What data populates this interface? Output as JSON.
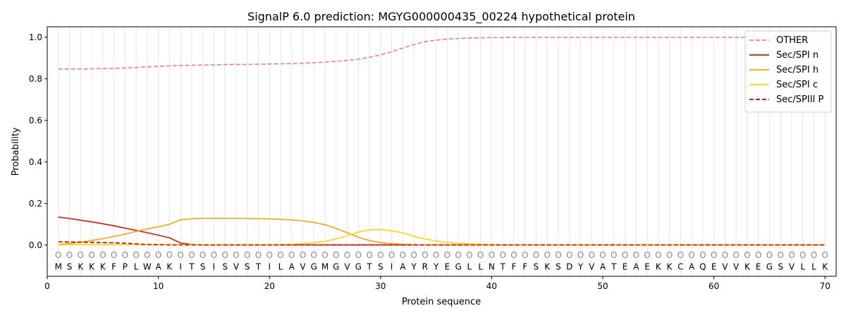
{
  "chart_data": {
    "type": "line",
    "title": "SignalP 6.0 prediction: MGYG000000435_00224 hypothetical protein",
    "xlabel": "Protein sequence",
    "ylabel": "Probability",
    "xlim": [
      0,
      71
    ],
    "ylim": [
      -0.15,
      1.05
    ],
    "x_ticks": [
      0,
      10,
      20,
      30,
      40,
      50,
      60,
      70
    ],
    "y_ticks": [
      0.0,
      0.2,
      0.4,
      0.6,
      0.8,
      1.0
    ],
    "x_tick_labels": [
      "0",
      "10",
      "20",
      "30",
      "40",
      "50",
      "60",
      "70"
    ],
    "y_tick_labels": [
      "0.0",
      "0.2",
      "0.4",
      "0.6",
      "0.8",
      "1.0"
    ],
    "grid": "vertical lines at each residue",
    "legend_position": "top-right",
    "sequence": [
      "M",
      "S",
      "K",
      "K",
      "K",
      "F",
      "P",
      "L",
      "W",
      "A",
      "K",
      "I",
      "T",
      "S",
      "I",
      "S",
      "V",
      "S",
      "T",
      "I",
      "L",
      "A",
      "V",
      "G",
      "M",
      "G",
      "V",
      "G",
      "T",
      "S",
      "I",
      "A",
      "Y",
      "R",
      "Y",
      "E",
      "G",
      "L",
      "L",
      "N",
      "T",
      "F",
      "F",
      "S",
      "K",
      "S",
      "D",
      "Y",
      "V",
      "A",
      "T",
      "E",
      "A",
      "E",
      "K",
      "K",
      "C",
      "A",
      "Q",
      "E",
      "V",
      "V",
      "K",
      "E",
      "G",
      "S",
      "V",
      "L",
      "L",
      "K"
    ],
    "region_marker": "O",
    "region_marker_y": -0.045,
    "sequence_y": -0.1,
    "x": [
      1,
      2,
      3,
      4,
      5,
      6,
      7,
      8,
      9,
      10,
      11,
      12,
      13,
      14,
      15,
      16,
      17,
      18,
      19,
      20,
      21,
      22,
      23,
      24,
      25,
      26,
      27,
      28,
      29,
      30,
      31,
      32,
      33,
      34,
      35,
      36,
      37,
      38,
      39,
      40,
      41,
      42,
      43,
      44,
      45,
      46,
      47,
      48,
      49,
      50,
      51,
      52,
      53,
      54,
      55,
      56,
      57,
      58,
      59,
      60,
      61,
      62,
      63,
      64,
      65,
      66,
      67,
      68,
      69,
      70
    ],
    "series": [
      {
        "name": "OTHER",
        "color": "#f08080",
        "dash": "dashed",
        "values": [
          0.847,
          0.847,
          0.847,
          0.848,
          0.849,
          0.85,
          0.852,
          0.854,
          0.857,
          0.86,
          0.862,
          0.864,
          0.865,
          0.866,
          0.867,
          0.868,
          0.869,
          0.869,
          0.87,
          0.871,
          0.872,
          0.873,
          0.875,
          0.877,
          0.88,
          0.884,
          0.888,
          0.894,
          0.903,
          0.915,
          0.93,
          0.948,
          0.965,
          0.978,
          0.986,
          0.991,
          0.994,
          0.996,
          0.997,
          0.998,
          0.998,
          0.999,
          0.999,
          0.999,
          0.999,
          0.999,
          0.999,
          0.999,
          0.999,
          0.999,
          0.999,
          0.999,
          0.999,
          0.999,
          0.999,
          0.999,
          0.999,
          0.999,
          0.999,
          0.999,
          0.999,
          0.999,
          0.999,
          0.999,
          0.999,
          0.999,
          0.999,
          0.999,
          0.999,
          0.999
        ]
      },
      {
        "name": "Sec/SPI n",
        "color": "#e8120c",
        "dash": "solid",
        "values": [
          0.135,
          0.128,
          0.12,
          0.112,
          0.103,
          0.093,
          0.082,
          0.071,
          0.06,
          0.048,
          0.035,
          0.01,
          0.003,
          0.001,
          0.001,
          0.001,
          0.001,
          0.001,
          0.001,
          0.001,
          0.001,
          0.001,
          0.001,
          0.001,
          0.001,
          0.001,
          0.001,
          0.001,
          0.001,
          0.001,
          0.001,
          0.001,
          0.001,
          0.001,
          0.001,
          0.001,
          0.001,
          0.001,
          0.001,
          0.001,
          0.001,
          0.001,
          0.001,
          0.001,
          0.001,
          0.001,
          0.001,
          0.001,
          0.001,
          0.001,
          0.001,
          0.001,
          0.001,
          0.001,
          0.001,
          0.001,
          0.001,
          0.001,
          0.001,
          0.001,
          0.001,
          0.001,
          0.001,
          0.001,
          0.001,
          0.001,
          0.001,
          0.001,
          0.001,
          0.001
        ]
      },
      {
        "name": "Sec/SPI h",
        "color": "#f5a800",
        "dash": "solid",
        "values": [
          0.003,
          0.008,
          0.014,
          0.022,
          0.031,
          0.042,
          0.053,
          0.066,
          0.078,
          0.088,
          0.1,
          0.122,
          0.127,
          0.129,
          0.129,
          0.129,
          0.129,
          0.128,
          0.127,
          0.126,
          0.124,
          0.121,
          0.116,
          0.109,
          0.098,
          0.08,
          0.06,
          0.038,
          0.022,
          0.012,
          0.007,
          0.004,
          0.002,
          0.001,
          0.001,
          0.001,
          0.001,
          0.001,
          0.001,
          0.001,
          0.001,
          0.001,
          0.001,
          0.001,
          0.001,
          0.001,
          0.001,
          0.001,
          0.001,
          0.001,
          0.001,
          0.001,
          0.001,
          0.001,
          0.001,
          0.001,
          0.001,
          0.001,
          0.001,
          0.001,
          0.001,
          0.001,
          0.001,
          0.001,
          0.001,
          0.001,
          0.001,
          0.001,
          0.001,
          0.001
        ]
      },
      {
        "name": "Sec/SPI c",
        "color": "#ffd700",
        "dash": "solid",
        "values": [
          0.001,
          0.002,
          0.002,
          0.002,
          0.002,
          0.002,
          0.002,
          0.002,
          0.002,
          0.002,
          0.002,
          0.002,
          0.002,
          0.002,
          0.002,
          0.002,
          0.002,
          0.002,
          0.002,
          0.002,
          0.003,
          0.004,
          0.007,
          0.011,
          0.018,
          0.03,
          0.045,
          0.063,
          0.073,
          0.075,
          0.068,
          0.06,
          0.042,
          0.03,
          0.02,
          0.013,
          0.009,
          0.006,
          0.004,
          0.003,
          0.002,
          0.002,
          0.001,
          0.001,
          0.001,
          0.001,
          0.001,
          0.001,
          0.001,
          0.001,
          0.001,
          0.001,
          0.001,
          0.001,
          0.001,
          0.001,
          0.001,
          0.001,
          0.001,
          0.001,
          0.001,
          0.001,
          0.001,
          0.001,
          0.001,
          0.001,
          0.001,
          0.001,
          0.001,
          0.001
        ]
      },
      {
        "name": "Sec/SPIII P",
        "color": "#cc0000",
        "dash": "dashed",
        "values": [
          0.016,
          0.015,
          0.014,
          0.013,
          0.012,
          0.011,
          0.009,
          0.006,
          0.003,
          0.002,
          0.001,
          0.001,
          0.001,
          0.001,
          0.001,
          0.001,
          0.001,
          0.001,
          0.001,
          0.001,
          0.001,
          0.001,
          0.001,
          0.001,
          0.001,
          0.001,
          0.001,
          0.001,
          0.001,
          0.001,
          0.001,
          0.001,
          0.001,
          0.001,
          0.001,
          0.001,
          0.001,
          0.001,
          0.001,
          0.001,
          0.001,
          0.001,
          0.001,
          0.001,
          0.001,
          0.001,
          0.001,
          0.001,
          0.001,
          0.001,
          0.001,
          0.001,
          0.001,
          0.001,
          0.001,
          0.001,
          0.001,
          0.001,
          0.001,
          0.001,
          0.001,
          0.001,
          0.001,
          0.001,
          0.001,
          0.001,
          0.001,
          0.001,
          0.001,
          0.001
        ]
      }
    ]
  }
}
